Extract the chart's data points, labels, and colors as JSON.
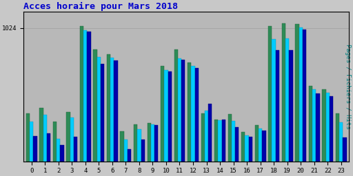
{
  "title": "Acces horaire pour Mars 2018",
  "ylabel": "Pages / Fichiers / Hits",
  "xlabel_hours": [
    "0",
    "1",
    "2",
    "3",
    "4",
    "5",
    "6",
    "7",
    "8",
    "9",
    "10",
    "11",
    "12",
    "13",
    "14",
    "15",
    "16",
    "17",
    "18",
    "19",
    "20",
    "21",
    "22",
    "23"
  ],
  "ytick_label": "1024",
  "ytick_value": 1024,
  "pages": [
    370,
    410,
    305,
    380,
    1040,
    860,
    820,
    230,
    285,
    295,
    730,
    860,
    760,
    365,
    320,
    360,
    225,
    275,
    1040,
    1060,
    1055,
    580,
    550,
    370
  ],
  "hits": [
    305,
    355,
    170,
    335,
    1005,
    800,
    795,
    168,
    245,
    285,
    700,
    790,
    730,
    390,
    315,
    310,
    198,
    250,
    940,
    945,
    1030,
    550,
    525,
    300
  ],
  "fichiers": [
    195,
    215,
    125,
    190,
    995,
    750,
    775,
    95,
    168,
    278,
    690,
    780,
    715,
    440,
    322,
    262,
    188,
    235,
    855,
    855,
    1010,
    520,
    500,
    182
  ],
  "color_pages": "#2e8b57",
  "color_hits": "#00ccff",
  "color_fichiers": "#0000aa",
  "bg_color": "#c8c8c8",
  "plot_bg": "#b8b8b8",
  "title_color": "#0000cc",
  "ylabel_color": "#008080",
  "tick_color": "#000000",
  "bar_width": 0.27,
  "ylim_max": 1150,
  "figwidth": 5.12,
  "figheight": 2.56,
  "dpi": 100
}
